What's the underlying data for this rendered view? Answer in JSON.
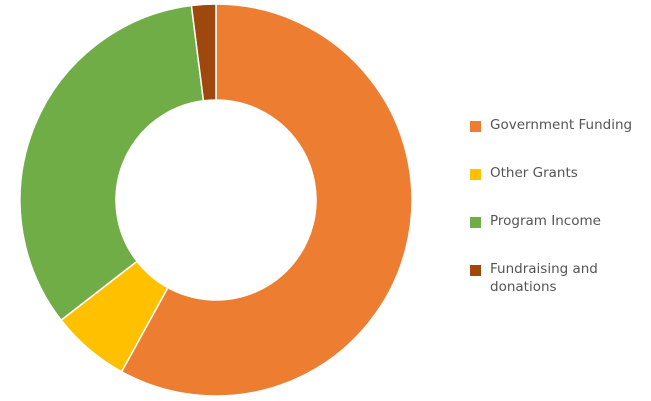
{
  "chart_data": {
    "type": "pie",
    "style": "donut",
    "title": "",
    "categories": [
      "Government Funding",
      "Other Grants",
      "Program Income",
      "Fundraising and donations"
    ],
    "values": [
      58,
      6.5,
      33.5,
      2
    ],
    "unit": "percent (estimated share of total)",
    "colors": [
      "#ED7D31",
      "#FFC000",
      "#70AD47",
      "#9E480E"
    ],
    "legend_position": "right",
    "start_angle": "12 o'clock",
    "direction": "clockwise"
  },
  "legend": {
    "items": [
      {
        "label": "Government Funding",
        "color": "#ED7D31"
      },
      {
        "label": "Other Grants",
        "color": "#FFC000"
      },
      {
        "label": "Program Income",
        "color": "#70AD47"
      },
      {
        "label": "Fundraising and donations",
        "color": "#9E480E"
      }
    ]
  }
}
